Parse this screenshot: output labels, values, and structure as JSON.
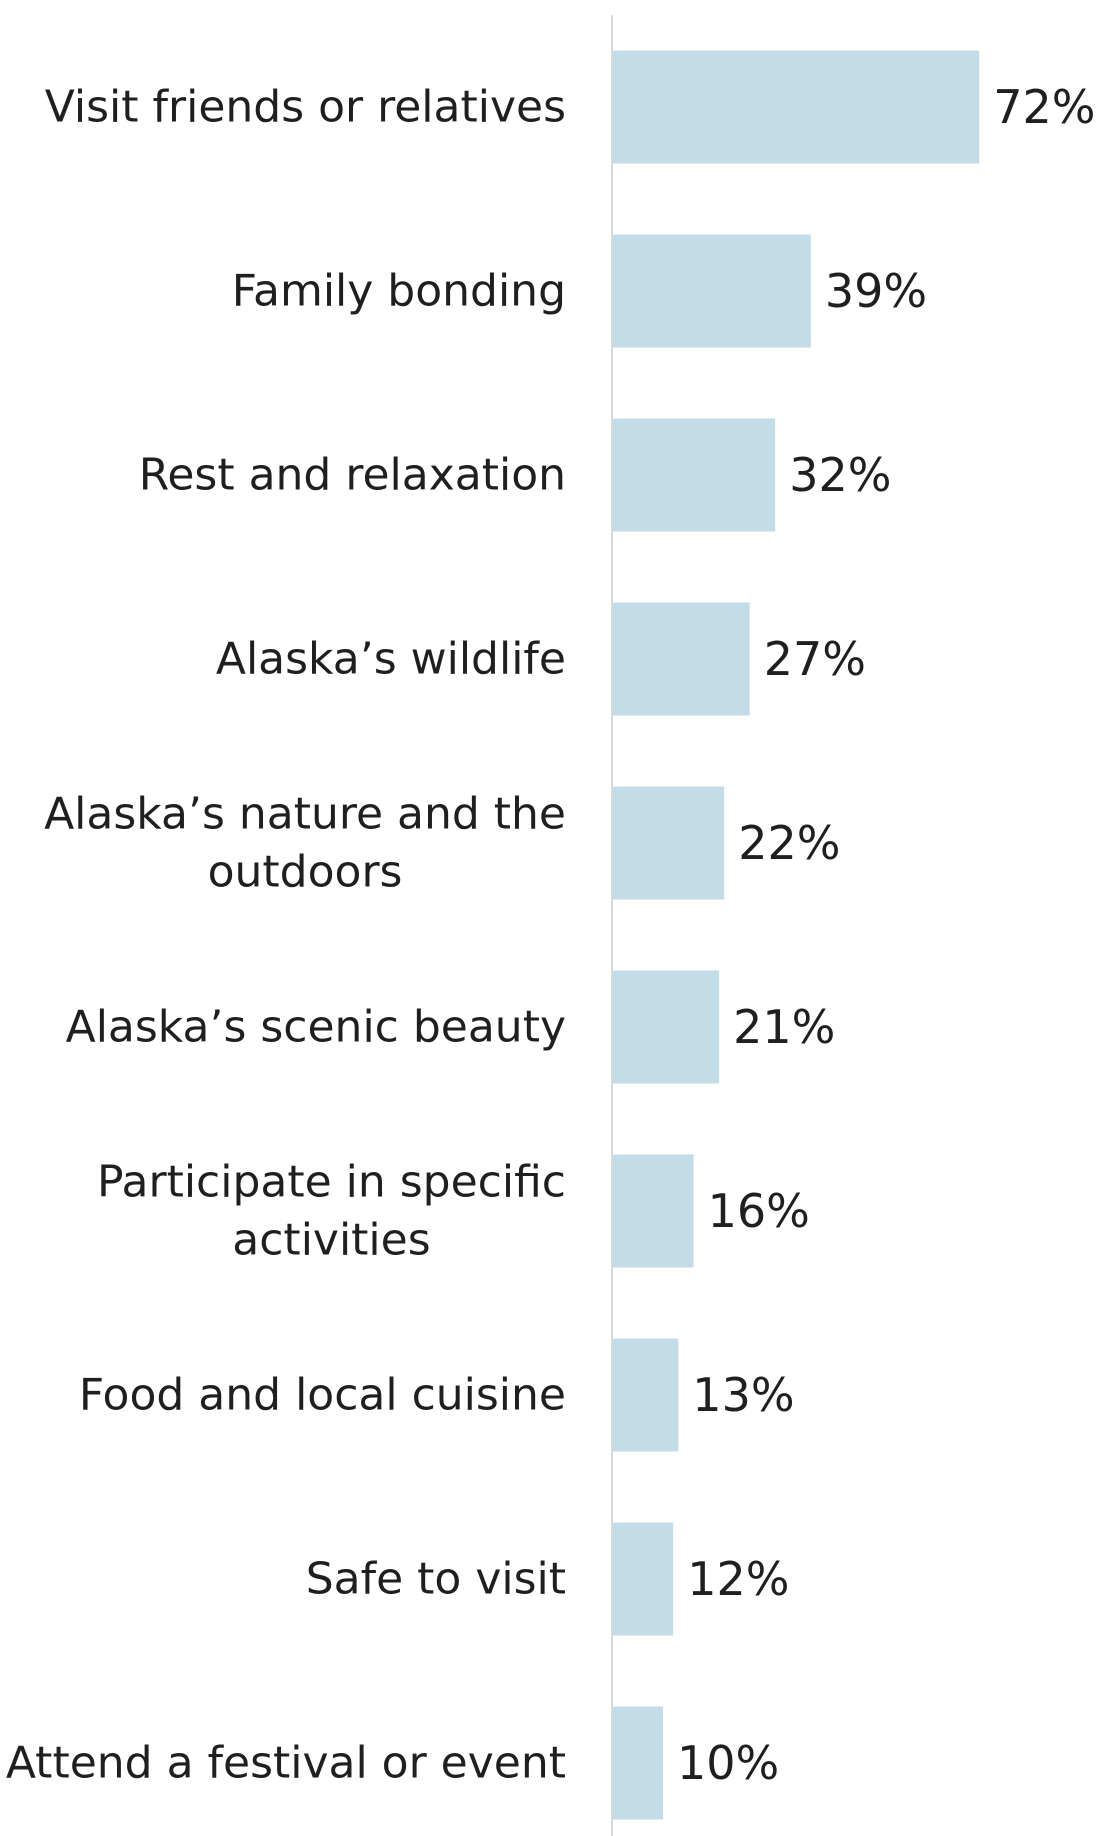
{
  "chart_data": {
    "type": "bar",
    "orientation": "horizontal",
    "categories": [
      "Visit friends or relatives",
      "Family bonding",
      "Rest and relaxation",
      "Alaska’s wildlife",
      "Alaska’s nature and the outdoors",
      "Alaska’s scenic beauty",
      "Participate in specific activities",
      "Food and local cuisine",
      "Safe to visit",
      "Attend a festival or event"
    ],
    "label_lines": [
      [
        "Visit friends or relatives"
      ],
      [
        "Family bonding"
      ],
      [
        "Rest and relaxation"
      ],
      [
        "Alaska’s wildlife"
      ],
      [
        "Alaska’s nature and the",
        "outdoors"
      ],
      [
        "Alaska’s scenic beauty"
      ],
      [
        "Participate in specific",
        "activities"
      ],
      [
        "Food and local cuisine"
      ],
      [
        "Safe to visit"
      ],
      [
        "Attend a festival or event"
      ]
    ],
    "values": [
      72,
      39,
      32,
      27,
      22,
      21,
      16,
      13,
      12,
      10
    ],
    "value_labels": [
      "72%",
      "39%",
      "32%",
      "27%",
      "22%",
      "21%",
      "16%",
      "13%",
      "12%",
      "10%"
    ],
    "value_unit": "%",
    "xlim": [
      0,
      100
    ],
    "grid": false,
    "legend": "none",
    "colors": {
      "bar": "#c2dde7",
      "axis": "#d9d9d9",
      "text": "#1f1f1f"
    }
  }
}
